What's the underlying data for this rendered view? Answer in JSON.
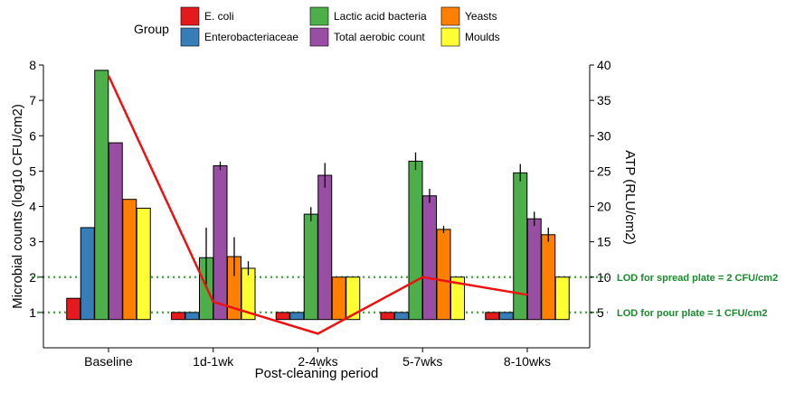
{
  "chart_data": {
    "type": "bar",
    "xlabel": "Post-cleaning period",
    "ylabel": "Microbial counts (log10 CFU/cm2)",
    "ylabel_right": "ATP (RLU/cm2)",
    "categories": [
      "Baseline",
      "1d-1wk",
      "2-4wks",
      "5-7wks",
      "8-10wks"
    ],
    "ylim": [
      0,
      8
    ],
    "yticks": [
      1,
      2,
      3,
      4,
      5,
      6,
      7,
      8
    ],
    "y2lim": [
      0,
      40
    ],
    "y2ticks": [
      5,
      10,
      15,
      20,
      25,
      30,
      35,
      40
    ],
    "bar_baseline": 0.8,
    "legend": {
      "title": "Group",
      "placement": "top"
    },
    "series": [
      {
        "name": "E. coli",
        "color": "#e41a1c",
        "values": [
          1.4,
          1.0,
          1.0,
          1.0,
          1.0
        ],
        "errors": [
          0,
          0,
          0,
          0,
          0
        ]
      },
      {
        "name": "Enterobacteriaceae",
        "color": "#377eb8",
        "values": [
          3.4,
          1.0,
          1.0,
          1.0,
          1.0
        ],
        "errors": [
          0,
          0,
          0,
          0,
          0
        ]
      },
      {
        "name": "Lactic acid bacteria",
        "color": "#4daf4a",
        "values": [
          7.85,
          2.55,
          3.78,
          5.28,
          4.95
        ],
        "errors": [
          0,
          0.85,
          0.2,
          0.25,
          0.25
        ]
      },
      {
        "name": "Total aerobic count",
        "color": "#984ea3",
        "values": [
          5.8,
          5.15,
          4.88,
          4.3,
          3.65
        ],
        "errors": [
          0,
          0.12,
          0.35,
          0.2,
          0.2
        ]
      },
      {
        "name": "Yeasts",
        "color": "#ff7f00",
        "values": [
          4.2,
          2.58,
          2.0,
          3.35,
          3.2
        ],
        "errors": [
          0,
          0.55,
          0,
          0.1,
          0.2
        ]
      },
      {
        "name": "Moulds",
        "color": "#ffff33",
        "values": [
          3.95,
          2.25,
          2.0,
          2.0,
          2.0
        ],
        "errors": [
          0,
          0.2,
          0,
          0,
          0
        ]
      }
    ],
    "atp_line": {
      "color": "#ee1111",
      "values": [
        38.5,
        6.5,
        2.0,
        10.0,
        7.5
      ]
    },
    "reference_lines": [
      {
        "y": 2,
        "label": "LOD  for spread plate = 2 CFU/cm2",
        "color": "#4daf4a"
      },
      {
        "y": 1,
        "label": "LOD  for pour plate = 1 CFU/cm2",
        "color": "#4daf4a"
      }
    ]
  }
}
